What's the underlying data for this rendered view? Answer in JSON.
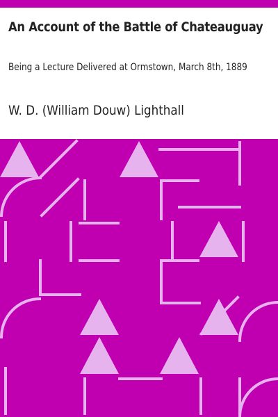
{
  "book": {
    "title": "An Account of the Battle of Chateauguay",
    "subtitle": "Being a Lecture Delivered at Ormstown, March 8th, 1889",
    "author": "W. D. (William Douw) Lighthall"
  },
  "colors": {
    "accent": "#c000b0",
    "pattern_line": "#e6b3ef",
    "text": "#222222"
  }
}
